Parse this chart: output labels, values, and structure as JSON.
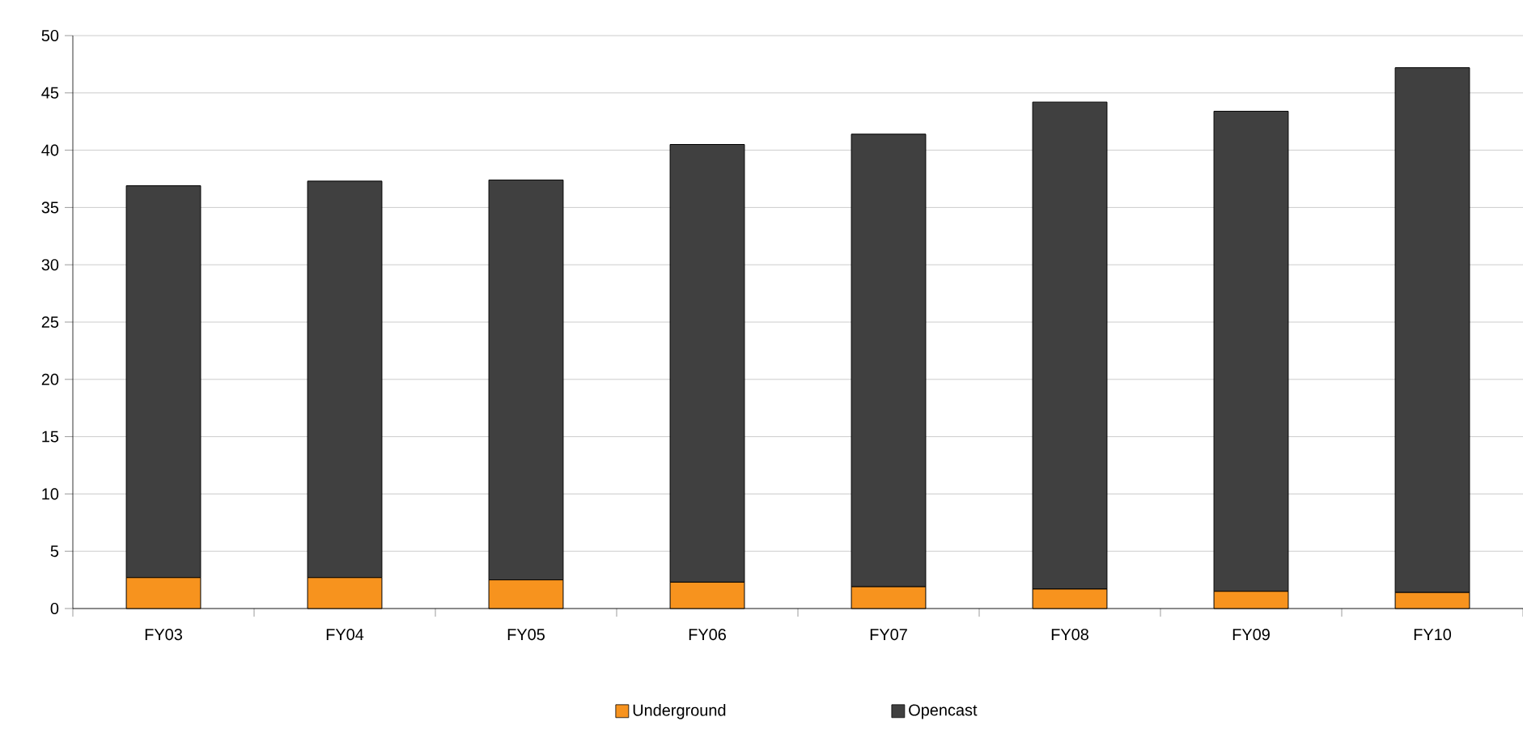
{
  "chart_data": {
    "type": "bar",
    "stacked": true,
    "categories": [
      "FY03",
      "FY04",
      "FY05",
      "FY06",
      "FY07",
      "FY08",
      "FY09",
      "FY10"
    ],
    "series": [
      {
        "name": "Underground",
        "color": "#f7931e",
        "values": [
          2.7,
          2.7,
          2.5,
          2.3,
          1.9,
          1.7,
          1.5,
          1.4
        ]
      },
      {
        "name": "Opencast",
        "color": "#404040",
        "values": [
          34.2,
          34.6,
          34.9,
          38.2,
          39.5,
          42.5,
          41.9,
          45.8
        ]
      }
    ],
    "ylim": [
      0,
      50
    ],
    "yticks": [
      0,
      5,
      10,
      15,
      20,
      25,
      30,
      35,
      40,
      45,
      50
    ],
    "grid": "y",
    "legend": "bottom"
  }
}
